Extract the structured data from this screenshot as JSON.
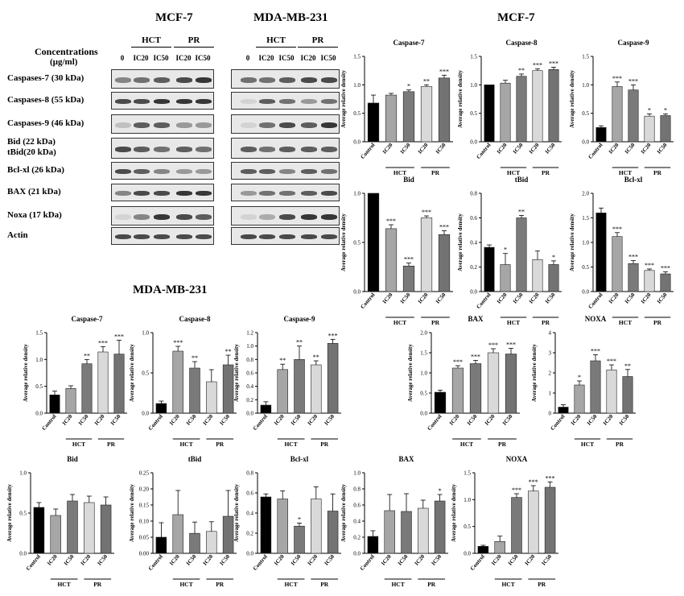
{
  "blots": {
    "titles": [
      "MCF-7",
      "MDA-MB-231"
    ],
    "concentration_label": "Concentrations",
    "concentration_unit": "(µg/ml)",
    "group_hct": "HCT",
    "group_pr": "PR",
    "columns": [
      "0",
      "IC20",
      "IC50",
      "IC20",
      "IC50"
    ],
    "rows": [
      {
        "label": "Caspases-7 (30 kDa)",
        "mcf7": [
          0.5,
          0.6,
          0.7,
          0.8,
          0.9
        ],
        "mda": [
          0.6,
          0.6,
          0.7,
          0.8,
          0.8
        ]
      },
      {
        "label": "Caspases-8 (55 kDa)",
        "mcf7": [
          0.8,
          0.8,
          0.9,
          0.9,
          0.9
        ],
        "mda": [
          0.1,
          0.7,
          0.6,
          0.4,
          0.6
        ]
      },
      {
        "label": "Caspases-9 (46 kDa)",
        "mcf7": [
          0.2,
          0.7,
          0.7,
          0.4,
          0.4
        ],
        "mda": [
          0.1,
          0.6,
          0.8,
          0.7,
          0.9
        ]
      },
      {
        "label": "Bid (22 kDa)",
        "label2": "tBid(20 kDa)",
        "mcf7": [
          0.8,
          0.7,
          0.6,
          0.7,
          0.6
        ],
        "mda": [
          0.7,
          0.6,
          0.7,
          0.7,
          0.7
        ]
      },
      {
        "label": "Bcl-xl (26 kDa)",
        "mcf7": [
          0.8,
          0.7,
          0.5,
          0.4,
          0.4
        ],
        "mda": [
          0.7,
          0.7,
          0.5,
          0.7,
          0.6
        ]
      },
      {
        "label": "BAX (21 kDa)",
        "mcf7": [
          0.5,
          0.8,
          0.8,
          0.9,
          0.9
        ],
        "mda": [
          0.4,
          0.6,
          0.6,
          0.7,
          0.8
        ]
      },
      {
        "label": "Noxa (17 kDa)",
        "mcf7": [
          0.1,
          0.5,
          0.9,
          0.8,
          0.7
        ],
        "mda": [
          0.1,
          0.3,
          0.8,
          0.9,
          0.9
        ]
      },
      {
        "label": "Actin",
        "mcf7": [
          0.8,
          0.8,
          0.8,
          0.8,
          0.8
        ],
        "mda": [
          0.8,
          0.8,
          0.8,
          0.8,
          0.8
        ]
      }
    ]
  },
  "section_titles": {
    "mcf7_charts": "MCF-7",
    "mda_charts": "MDA-MB-231"
  },
  "chart_common": {
    "ylabel": "Average relative density",
    "categories": [
      "Control",
      "IC20",
      "IC50",
      "IC20",
      "IC50"
    ],
    "group_labels": [
      "HCT",
      "PR"
    ],
    "bar_colors": [
      "#000000",
      "#a6a6a6",
      "#7a7a7a",
      "#d9d9d9",
      "#737373"
    ]
  },
  "chart_data": [
    {
      "type": "bar",
      "title": "Caspase-7",
      "values": [
        0.68,
        0.82,
        0.88,
        0.97,
        1.12
      ],
      "errors": [
        0.14,
        0.03,
        0.03,
        0.03,
        0.05
      ],
      "sig": [
        "",
        "",
        "*",
        "**",
        "***"
      ],
      "ylim": [
        0,
        1.5
      ],
      "ticks": [
        0,
        0.5,
        1.0,
        1.5
      ],
      "tick_labels": [
        "0.0",
        "0.5",
        "1.0",
        "1.5"
      ]
    },
    {
      "type": "bar",
      "title": "Caspase-8",
      "values": [
        1.0,
        1.03,
        1.15,
        1.25,
        1.27
      ],
      "errors": [
        0,
        0.05,
        0.04,
        0.03,
        0.04
      ],
      "sig": [
        "",
        "",
        "**",
        "***",
        "***"
      ],
      "ylim": [
        0,
        1.5
      ],
      "ticks": [
        0,
        0.5,
        1.0,
        1.5
      ],
      "tick_labels": [
        "0.0",
        "0.5",
        "1.0",
        "1.5"
      ]
    },
    {
      "type": "bar",
      "title": "Caspase-9",
      "values": [
        0.25,
        0.97,
        0.91,
        0.45,
        0.46
      ],
      "errors": [
        0.03,
        0.08,
        0.09,
        0.04,
        0.03
      ],
      "sig": [
        "",
        "***",
        "***",
        "*",
        "*"
      ],
      "ylim": [
        0,
        1.5
      ],
      "ticks": [
        0,
        0.5,
        1.0,
        1.5
      ],
      "tick_labels": [
        "0.0",
        "0.5",
        "1.0",
        "1.5"
      ]
    },
    {
      "type": "bar",
      "title": "Bid",
      "values": [
        1.0,
        0.64,
        0.26,
        0.75,
        0.58
      ],
      "errors": [
        0,
        0.04,
        0.03,
        0.02,
        0.04
      ],
      "sig": [
        "",
        "***",
        "***",
        "***",
        "***"
      ],
      "ylim": [
        0,
        1.0
      ],
      "ticks": [
        0,
        0.5,
        1.0
      ],
      "tick_labels": [
        "0.0",
        "0.5",
        "1.0"
      ]
    },
    {
      "type": "bar",
      "title": "tBid",
      "values": [
        0.36,
        0.22,
        0.6,
        0.26,
        0.22
      ],
      "errors": [
        0.02,
        0.09,
        0.02,
        0.07,
        0.03
      ],
      "sig": [
        "",
        "*",
        "**",
        "",
        "*"
      ],
      "ylim": [
        0,
        0.8
      ],
      "ticks": [
        0,
        0.2,
        0.4,
        0.6,
        0.8
      ],
      "tick_labels": [
        "0.0",
        "0.2",
        "0.4",
        "0.6",
        "0.8"
      ]
    },
    {
      "type": "bar",
      "title": "Bcl-xl",
      "values": [
        1.6,
        1.12,
        0.57,
        0.43,
        0.36
      ],
      "errors": [
        0.1,
        0.08,
        0.06,
        0.03,
        0.04
      ],
      "sig": [
        "",
        "***",
        "***",
        "***",
        "***"
      ],
      "ylim": [
        0,
        2.0
      ],
      "ticks": [
        0,
        0.5,
        1.0,
        1.5,
        2.0
      ],
      "tick_labels": [
        "0.0",
        "0.5",
        "1.0",
        "1.5",
        "2.0"
      ]
    },
    {
      "type": "bar",
      "title": "Caspase-7",
      "values": [
        0.34,
        0.46,
        0.92,
        1.14,
        1.1
      ],
      "errors": [
        0.07,
        0.05,
        0.08,
        0.1,
        0.26
      ],
      "sig": [
        "",
        "",
        "**",
        "***",
        "***"
      ],
      "ylim": [
        0,
        1.5
      ],
      "ticks": [
        0,
        0.5,
        1.0,
        1.5
      ],
      "tick_labels": [
        "0.0",
        "0.5",
        "1.0",
        "1.5"
      ]
    },
    {
      "type": "bar",
      "title": "Caspase-8",
      "values": [
        0.12,
        0.77,
        0.56,
        0.39,
        0.6
      ],
      "errors": [
        0.03,
        0.06,
        0.08,
        0.15,
        0.12
      ],
      "sig": [
        "",
        "***",
        "**",
        "",
        "**"
      ],
      "ylim": [
        0,
        1.0
      ],
      "ticks": [
        0,
        0.5,
        1.0
      ],
      "tick_labels": [
        "0.0",
        "0.5",
        "1.0"
      ]
    },
    {
      "type": "bar",
      "title": "Caspase-9",
      "values": [
        0.12,
        0.65,
        0.8,
        0.72,
        1.04
      ],
      "errors": [
        0.05,
        0.08,
        0.2,
        0.06,
        0.06
      ],
      "sig": [
        "",
        "**",
        "**",
        "**",
        "***"
      ],
      "ylim": [
        0,
        1.2
      ],
      "ticks": [
        0,
        0.2,
        0.4,
        0.6,
        0.8,
        1.0,
        1.2
      ],
      "tick_labels": [
        "0.0",
        "0.2",
        "0.4",
        "0.6",
        "0.8",
        "1.0",
        "1.2"
      ]
    },
    {
      "type": "bar",
      "title": "BAX",
      "values": [
        0.52,
        1.12,
        1.23,
        1.5,
        1.47
      ],
      "errors": [
        0.05,
        0.06,
        0.08,
        0.1,
        0.14
      ],
      "sig": [
        "",
        "***",
        "***",
        "***",
        "***"
      ],
      "ylim": [
        0,
        2.0
      ],
      "ticks": [
        0,
        0.5,
        1.0,
        1.5,
        2.0
      ],
      "tick_labels": [
        "0.0",
        "0.5",
        "1.0",
        "1.5",
        "2.0"
      ]
    },
    {
      "type": "bar",
      "title": "NOXA",
      "values": [
        0.3,
        1.4,
        2.6,
        2.15,
        1.82
      ],
      "errors": [
        0.12,
        0.2,
        0.3,
        0.25,
        0.35
      ],
      "sig": [
        "",
        "*",
        "***",
        "***",
        "**"
      ],
      "ylim": [
        0,
        4
      ],
      "ticks": [
        0,
        1,
        2,
        3,
        4
      ],
      "tick_labels": [
        "0",
        "1",
        "2",
        "3",
        "4"
      ]
    },
    {
      "type": "bar",
      "title": "Bid",
      "values": [
        0.57,
        0.47,
        0.65,
        0.63,
        0.6
      ],
      "errors": [
        0.06,
        0.08,
        0.08,
        0.08,
        0.1
      ],
      "sig": [
        "",
        "",
        "",
        "",
        ""
      ],
      "ylim": [
        0,
        1.0
      ],
      "ticks": [
        0,
        0.5,
        1.0
      ],
      "tick_labels": [
        "0.0",
        "0.5",
        "1.0"
      ]
    },
    {
      "type": "bar",
      "title": "tBid",
      "values": [
        0.05,
        0.12,
        0.062,
        0.068,
        0.115
      ],
      "errors": [
        0.045,
        0.075,
        0.035,
        0.03,
        0.08
      ],
      "sig": [
        "",
        "",
        "",
        "",
        ""
      ],
      "ylim": [
        0,
        0.25
      ],
      "ticks": [
        0,
        0.05,
        0.1,
        0.15,
        0.2,
        0.25
      ],
      "tick_labels": [
        "0.00",
        "0.05",
        "0.10",
        "0.15",
        "0.20",
        "0.25"
      ]
    },
    {
      "type": "bar",
      "title": "Bcl-xl",
      "values": [
        0.56,
        0.54,
        0.27,
        0.54,
        0.42
      ],
      "errors": [
        0.03,
        0.08,
        0.03,
        0.12,
        0.17
      ],
      "sig": [
        "",
        "",
        "*",
        "",
        ""
      ],
      "ylim": [
        0,
        0.8
      ],
      "ticks": [
        0,
        0.2,
        0.4,
        0.6,
        0.8
      ],
      "tick_labels": [
        "0.0",
        "0.2",
        "0.4",
        "0.6",
        "0.8"
      ]
    },
    {
      "type": "bar",
      "title": "BAX",
      "values": [
        0.21,
        0.53,
        0.52,
        0.56,
        0.65
      ],
      "errors": [
        0.07,
        0.2,
        0.22,
        0.1,
        0.08
      ],
      "sig": [
        "",
        "",
        "",
        "",
        "*"
      ],
      "ylim": [
        0,
        1.0
      ],
      "ticks": [
        0,
        0.2,
        0.4,
        0.6,
        0.8,
        1.0
      ],
      "tick_labels": [
        "0.0",
        "0.2",
        "0.4",
        "0.6",
        "0.8",
        "1.0"
      ]
    },
    {
      "type": "bar",
      "title": "NOXA",
      "values": [
        0.13,
        0.22,
        1.04,
        1.16,
        1.23
      ],
      "errors": [
        0.02,
        0.1,
        0.07,
        0.1,
        0.1
      ],
      "sig": [
        "",
        "",
        "***",
        "***",
        "***"
      ],
      "ylim": [
        0,
        1.5
      ],
      "ticks": [
        0,
        0.5,
        1.0,
        1.5
      ],
      "tick_labels": [
        "0.0",
        "0.5",
        "1.0",
        "1.5"
      ]
    }
  ]
}
